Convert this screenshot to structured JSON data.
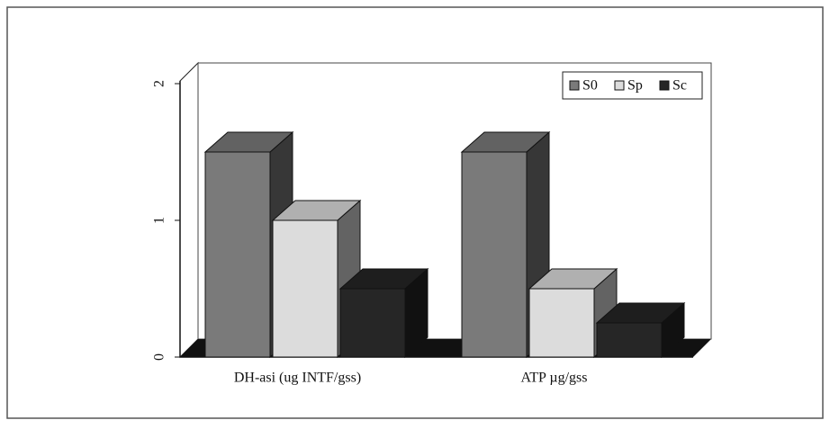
{
  "chart_data": {
    "type": "bar3d",
    "categories": [
      "DH-asi (ug INTF/gss)",
      "ATP µg/gss"
    ],
    "series": [
      {
        "name": "S0",
        "color": "#7a7a7a",
        "values": [
          1.5,
          1.5
        ]
      },
      {
        "name": "Sp",
        "color": "#dcdcdc",
        "values": [
          1.0,
          0.5
        ]
      },
      {
        "name": "Sc",
        "color": "#262626",
        "values": [
          0.5,
          0.25
        ]
      }
    ],
    "ylim": [
      0,
      2
    ],
    "yticks": [
      0,
      1,
      2
    ],
    "legend": "top-right"
  }
}
